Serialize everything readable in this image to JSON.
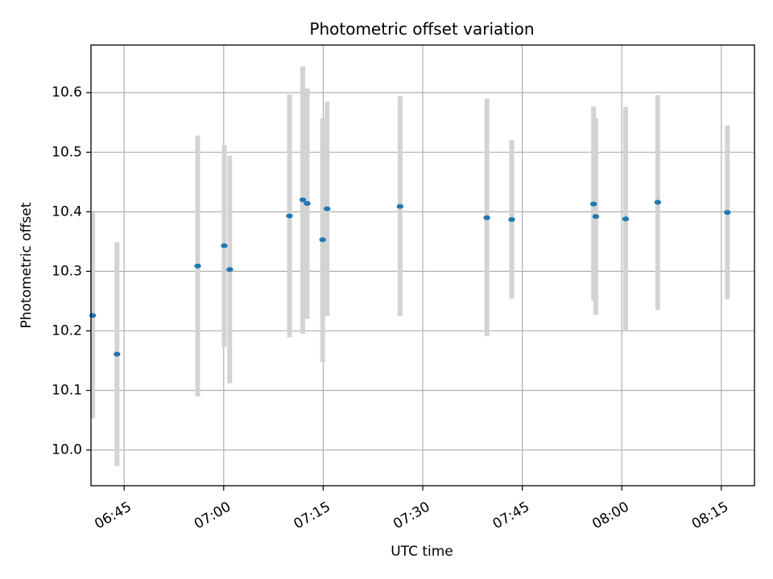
{
  "chart_data": {
    "type": "scatter",
    "title": "Photometric offset variation",
    "xlabel": "UTC time",
    "ylabel": "Photometric offset",
    "xlim": [
      "06:40",
      "08:20"
    ],
    "ylim": [
      9.94,
      10.68
    ],
    "x_ticks": [
      "06:45",
      "07:00",
      "07:15",
      "07:30",
      "07:45",
      "08:00",
      "08:15"
    ],
    "y_ticks": [
      "10.0",
      "10.1",
      "10.2",
      "10.3",
      "10.4",
      "10.5",
      "10.6"
    ],
    "grid": true,
    "colors": {
      "point": "#1f77b4",
      "errorbar": "#d3d3d3",
      "grid": "#b0b0b0"
    },
    "points": [
      {
        "x": "06:40:15",
        "y": 10.226,
        "y_low": 10.053,
        "y_high": 10.399
      },
      {
        "x": "06:43:55",
        "y": 10.161,
        "y_low": 9.973,
        "y_high": 10.349
      },
      {
        "x": "06:56:05",
        "y": 10.309,
        "y_low": 10.09,
        "y_high": 10.528
      },
      {
        "x": "07:00:05",
        "y": 10.343,
        "y_low": 10.173,
        "y_high": 10.512
      },
      {
        "x": "07:00:55",
        "y": 10.303,
        "y_low": 10.112,
        "y_high": 10.494
      },
      {
        "x": "07:09:55",
        "y": 10.393,
        "y_low": 10.189,
        "y_high": 10.597
      },
      {
        "x": "07:11:55",
        "y": 10.42,
        "y_low": 10.195,
        "y_high": 10.644
      },
      {
        "x": "07:12:35",
        "y": 10.414,
        "y_low": 10.22,
        "y_high": 10.607
      },
      {
        "x": "07:14:55",
        "y": 10.353,
        "y_low": 10.148,
        "y_high": 10.557
      },
      {
        "x": "07:15:35",
        "y": 10.405,
        "y_low": 10.225,
        "y_high": 10.585
      },
      {
        "x": "07:26:35",
        "y": 10.409,
        "y_low": 10.225,
        "y_high": 10.594
      },
      {
        "x": "07:39:40",
        "y": 10.39,
        "y_low": 10.191,
        "y_high": 10.59
      },
      {
        "x": "07:43:25",
        "y": 10.387,
        "y_low": 10.254,
        "y_high": 10.52
      },
      {
        "x": "07:55:45",
        "y": 10.413,
        "y_low": 10.25,
        "y_high": 10.577
      },
      {
        "x": "07:56:05",
        "y": 10.392,
        "y_low": 10.227,
        "y_high": 10.557
      },
      {
        "x": "08:00:35",
        "y": 10.388,
        "y_low": 10.2,
        "y_high": 10.576
      },
      {
        "x": "08:05:25",
        "y": 10.416,
        "y_low": 10.235,
        "y_high": 10.596
      },
      {
        "x": "08:15:55",
        "y": 10.399,
        "y_low": 10.253,
        "y_high": 10.545
      }
    ]
  }
}
